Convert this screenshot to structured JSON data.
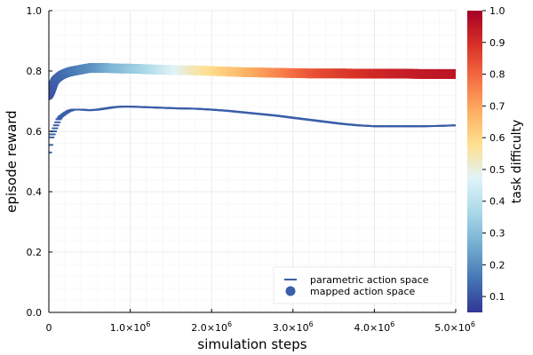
{
  "chart_data": {
    "type": "scatter",
    "xlabel": "simulation steps",
    "ylabel": "episode reward",
    "xlim": [
      0,
      5000000
    ],
    "ylim": [
      0,
      1
    ],
    "x_ticks": [
      {
        "value": 0,
        "base": "0",
        "exp": ""
      },
      {
        "value": 1000000,
        "base": "1.0×10",
        "exp": "6"
      },
      {
        "value": 2000000,
        "base": "2.0×10",
        "exp": "6"
      },
      {
        "value": 3000000,
        "base": "3.0×10",
        "exp": "6"
      },
      {
        "value": 4000000,
        "base": "4.0×10",
        "exp": "6"
      },
      {
        "value": 5000000,
        "base": "5.0×10",
        "exp": "6"
      }
    ],
    "y_ticks": [
      "0.0",
      "0.2",
      "0.4",
      "0.6",
      "0.8",
      "1.0"
    ],
    "y_tick_values": [
      0.0,
      0.2,
      0.4,
      0.6,
      0.8,
      1.0
    ],
    "grid": true,
    "legend_position": "bottom-right",
    "colorbar": {
      "label": "task difficulty",
      "range": [
        0.05,
        1.0
      ],
      "ticks": [
        "0.1",
        "0.2",
        "0.3",
        "0.4",
        "0.5",
        "0.6",
        "0.7",
        "0.8",
        "0.9",
        "1.0"
      ],
      "tick_values": [
        0.1,
        0.2,
        0.3,
        0.4,
        0.5,
        0.6,
        0.7,
        0.8,
        0.9,
        1.0
      ],
      "colors": [
        "#313695",
        "#4575b4",
        "#74add1",
        "#abd9e9",
        "#e0f3f8",
        "#fee090",
        "#fdae61",
        "#f46d43",
        "#d73027",
        "#a50026"
      ]
    },
    "series": [
      {
        "name": "parametric action space",
        "marker": "hline",
        "color": "#3a5fa8",
        "x": [
          0,
          30000,
          60000,
          90000,
          120000,
          150000,
          200000,
          250000,
          300000,
          400000,
          500000,
          600000,
          700000,
          800000,
          900000,
          1000000,
          1200000,
          1400000,
          1600000,
          1800000,
          2000000,
          2200000,
          2500000,
          2800000,
          3000000,
          3300000,
          3600000,
          3800000,
          4000000,
          4300000,
          4600000,
          4800000,
          5000000
        ],
        "y": [
          0.53,
          0.58,
          0.6,
          0.62,
          0.64,
          0.65,
          0.66,
          0.668,
          0.672,
          0.672,
          0.67,
          0.672,
          0.676,
          0.68,
          0.682,
          0.682,
          0.68,
          0.678,
          0.676,
          0.675,
          0.672,
          0.668,
          0.66,
          0.652,
          0.645,
          0.635,
          0.625,
          0.62,
          0.617,
          0.617,
          0.617,
          0.618,
          0.62
        ]
      },
      {
        "name": "mapped action space",
        "marker": "circle",
        "x": [
          0,
          20000,
          40000,
          60000,
          80000,
          100000,
          130000,
          160000,
          200000,
          250000,
          300000,
          400000,
          500000,
          600000,
          700000,
          800000,
          900000,
          1000000,
          1200000,
          1400000,
          1600000,
          1800000,
          2000000,
          2200000,
          2400000,
          2600000,
          2800000,
          3000000,
          3200000,
          3400000,
          3600000,
          3800000,
          4000000,
          4200000,
          4400000,
          4600000,
          4800000,
          5000000
        ],
        "y": [
          0.72,
          0.73,
          0.745,
          0.76,
          0.77,
          0.775,
          0.782,
          0.787,
          0.792,
          0.797,
          0.8,
          0.805,
          0.81,
          0.81,
          0.81,
          0.809,
          0.808,
          0.808,
          0.806,
          0.804,
          0.803,
          0.802,
          0.8,
          0.798,
          0.796,
          0.795,
          0.794,
          0.793,
          0.792,
          0.792,
          0.792,
          0.791,
          0.791,
          0.791,
          0.791,
          0.79,
          0.79,
          0.79
        ],
        "difficulty": [
          0.1,
          0.1,
          0.11,
          0.11,
          0.12,
          0.12,
          0.13,
          0.13,
          0.14,
          0.15,
          0.16,
          0.18,
          0.2,
          0.22,
          0.25,
          0.28,
          0.3,
          0.32,
          0.36,
          0.42,
          0.48,
          0.54,
          0.58,
          0.62,
          0.66,
          0.7,
          0.74,
          0.78,
          0.82,
          0.85,
          0.87,
          0.89,
          0.91,
          0.92,
          0.93,
          0.94,
          0.95,
          0.95
        ]
      }
    ]
  }
}
